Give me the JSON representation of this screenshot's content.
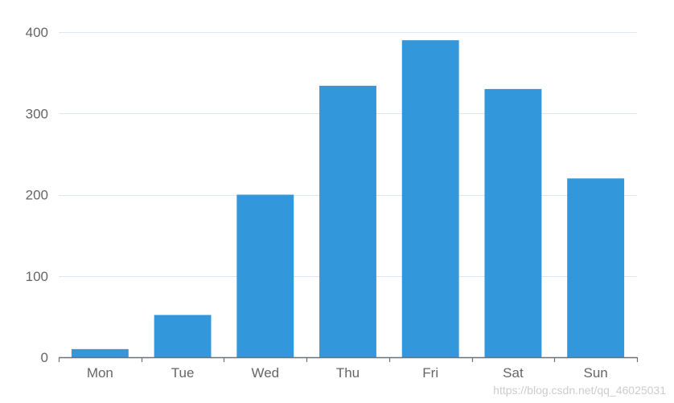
{
  "chart_data": {
    "type": "bar",
    "categories": [
      "Mon",
      "Tue",
      "Wed",
      "Thu",
      "Fri",
      "Sat",
      "Sun"
    ],
    "values": [
      10,
      52,
      200,
      334,
      390,
      330,
      220
    ],
    "title": "",
    "xlabel": "",
    "ylabel": "",
    "ylim": [
      0,
      400
    ],
    "yticks": [
      0,
      100,
      200,
      300,
      400
    ],
    "grid": true,
    "legend": "none",
    "colors": {
      "bar": "#3398DB",
      "grid": "#E0E6F1",
      "axis": "#6E7079",
      "label": "#666666"
    }
  },
  "watermark": "https://blog.csdn.net/qq_46025031"
}
